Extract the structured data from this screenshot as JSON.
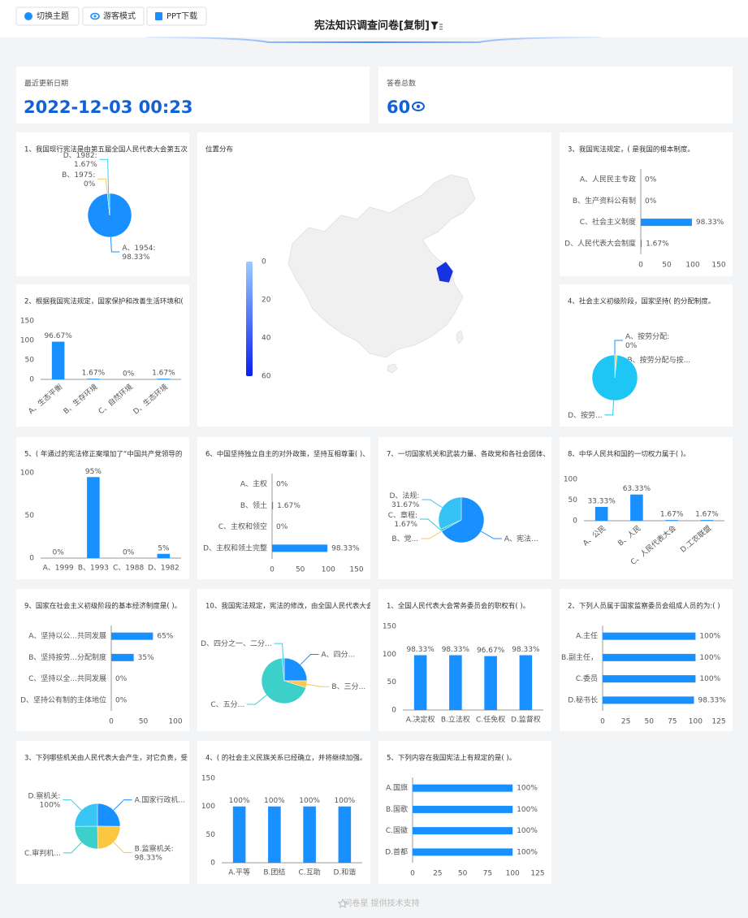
{
  "header": {
    "buttons": [
      "切换主题",
      "游客模式",
      "PPT下载"
    ],
    "title": "宪法知识调查问卷[复制]"
  },
  "stats": [
    {
      "label": "最近更新日期",
      "value": "2022-12-03 00:23"
    },
    {
      "label": "答卷总数",
      "value": 60
    }
  ],
  "chart_data": [
    {
      "type": "pie",
      "title": "1、我国现行宪法是由第五届全国人民代表大会第五次",
      "categories": [
        "A、1954:",
        "B、1975:",
        "D、1982:"
      ],
      "values": [
        98.33,
        0,
        1.67
      ],
      "value_labels": [
        "98.33%",
        "0%",
        "1.67%"
      ],
      "colors": [
        "#1890ff",
        "#fac858",
        "#36cbf5"
      ]
    },
    {
      "type": "map",
      "title": "位置分布",
      "clim": [
        0,
        60
      ],
      "cticks": [
        0,
        20,
        40,
        60
      ],
      "colorbar": [
        "#9ccbff",
        "#0a1ff0"
      ]
    },
    {
      "type": "hbar",
      "title": "3、我国宪法规定，( 是我国的根本制度。",
      "categories": [
        "A、人民民主专政",
        "B、生产资料公有制",
        "C、社会主义制度",
        "D、人民代表大会制度"
      ],
      "values": [
        0,
        0,
        98.33,
        1.67
      ],
      "value_labels": [
        "0%",
        "0%",
        "98.33%",
        "1.67%"
      ],
      "xlim": [
        0,
        150
      ],
      "xticks": [
        0,
        50,
        100,
        150
      ],
      "color": "#1890ff"
    },
    {
      "type": "bar",
      "title": "2、根据我国宪法规定，国家保护和改善生活环境和(",
      "categories": [
        "A、生态平衡",
        "B、生存环境",
        "C、自然环境",
        "D、生态环境"
      ],
      "values": [
        96.67,
        1.67,
        0,
        1.67
      ],
      "value_labels": [
        "96.67%",
        "1.67%",
        "0%",
        "1.67%"
      ],
      "ylim": [
        0,
        150
      ],
      "yticks": [
        0,
        50,
        100,
        150
      ],
      "color": "#1890ff"
    },
    {
      "type": "pie",
      "title": "4、社会主义初级阶段，国家坚持( 的分配制度。",
      "categories": [
        "A、按劳分配:",
        "B、按劳分配与按...",
        "D、按劳..."
      ],
      "values": [
        0,
        1.67,
        98.33
      ],
      "value_labels": [
        "0%",
        null,
        null
      ],
      "colors": [
        "#1890ff",
        "#fac858",
        "#1ec6f5"
      ]
    },
    {
      "type": "bar",
      "title": "5、( 年通过的宪法修正案增加了“中国共产党领导的",
      "categories": [
        "A、1999",
        "B、1993",
        "C、1988",
        "D、1982"
      ],
      "values": [
        0,
        95,
        0,
        5
      ],
      "value_labels": [
        "0%",
        "95%",
        "0%",
        "5%"
      ],
      "ylim": [
        0,
        100
      ],
      "yticks": [
        0,
        50,
        100
      ],
      "color": "#1890ff"
    },
    {
      "type": "hbar",
      "title": "6、中国坚持独立自主的对外政策，坚持互相尊重( )、",
      "categories": [
        "A、主权",
        "B、领土",
        "C、主权和领空",
        "D、主权和领土完整"
      ],
      "values": [
        0,
        1.67,
        0,
        98.33
      ],
      "value_labels": [
        "0%",
        "1.67%",
        "0%",
        "98.33%"
      ],
      "xlim": [
        0,
        150
      ],
      "xticks": [
        0,
        50,
        100,
        150
      ],
      "color": "#1890ff"
    },
    {
      "type": "pie",
      "title": "7、一切国家机关和武装力量、各政党和各社会团体、",
      "categories": [
        "A、宪法...",
        "B、党...",
        "C、章程:",
        "D、法规:"
      ],
      "values": [
        66.67,
        0,
        1.67,
        31.67
      ],
      "value_labels": [
        null,
        null,
        "1.67%",
        "31.67%"
      ],
      "colors": [
        "#1890ff",
        "#fac858",
        "#36cbcb",
        "#35c3f5"
      ]
    },
    {
      "type": "bar",
      "title": "8、中华人民共和国的一切权力属于( )。",
      "categories": [
        "A、公民",
        "B、人民",
        "C、人民代表大会",
        "D.工农联盟"
      ],
      "values": [
        33.33,
        63.33,
        1.67,
        1.67
      ],
      "value_labels": [
        "33.33%",
        "63.33%",
        "1.67%",
        "1.67%"
      ],
      "ylim": [
        0,
        100
      ],
      "yticks": [
        0,
        50,
        100
      ],
      "color": "#1890ff"
    },
    {
      "type": "hbar",
      "title": "9、国家在社会主义初级阶段的基本经济制度是( )。",
      "categories": [
        "A、坚持以公...共同发展",
        "B、坚持按劳...分配制度",
        "C、坚持以全...共同发展",
        "D、坚持公有制的主体地位"
      ],
      "values": [
        65,
        35,
        0,
        0
      ],
      "value_labels": [
        "65%",
        "35%",
        "0%",
        "0%"
      ],
      "xlim": [
        0,
        100
      ],
      "xticks": [
        0,
        50,
        100
      ],
      "color": "#1890ff"
    },
    {
      "type": "pie",
      "title": "10、我国宪法规定，宪法的修改，由全国人民代表大会",
      "categories": [
        "A、四分...",
        "B、三分...",
        "C、五分...",
        "D、四分之一、二分..."
      ],
      "values": [
        25,
        5,
        68.33,
        1.67
      ],
      "value_labels": [
        null,
        null,
        null,
        null
      ],
      "colors": [
        "#1890ff",
        "#fac858",
        "#3dcfc9",
        "#36cbf5"
      ]
    },
    {
      "type": "bar",
      "title": "1、全国人民代表大会常务委员会的职权有( )。",
      "categories": [
        "A.决定权",
        "B.立法权",
        "C.任免权",
        "D.监督权"
      ],
      "values": [
        98.33,
        98.33,
        96.67,
        98.33
      ],
      "value_labels": [
        "98.33%",
        "98.33%",
        "96.67%",
        "98.33%"
      ],
      "ylim": [
        0,
        150
      ],
      "yticks": [
        0,
        50,
        100,
        150
      ],
      "color": "#1890ff"
    },
    {
      "type": "hbar",
      "title": "2、下列人员属于国家监察委员会组成人员的为:( )",
      "categories": [
        "A.主任",
        "B.副主任，",
        "C.委员",
        "D.秘书长"
      ],
      "values": [
        100,
        100,
        100,
        98.33
      ],
      "value_labels": [
        "100%",
        "100%",
        "100%",
        "98.33%"
      ],
      "xlim": [
        0,
        125
      ],
      "xticks": [
        0,
        25,
        50,
        75,
        100,
        125
      ],
      "color": "#1890ff"
    },
    {
      "type": "pie",
      "title": "3、下列哪些机关由人民代表大会产生，对它负责，受",
      "categories": [
        "A.国家行政机...",
        "B.监察机关:",
        "C.审判机...",
        "D.察机关:"
      ],
      "values": [
        100,
        98.33,
        100,
        100
      ],
      "value_labels": [
        null,
        "98.33%",
        null,
        "100%"
      ],
      "colors": [
        "#1890ff",
        "#fbc740",
        "#3dcfc9",
        "#38c6f4"
      ]
    },
    {
      "type": "bar",
      "title": "4、( 的社会主义民族关系已经确立，并将继续加强。",
      "categories": [
        "A.平等",
        "B.团结",
        "C.互助",
        "D.和谐"
      ],
      "values": [
        100,
        100,
        100,
        100
      ],
      "value_labels": [
        "100%",
        "100%",
        "100%",
        "100%"
      ],
      "ylim": [
        0,
        150
      ],
      "yticks": [
        0,
        50,
        100,
        150
      ],
      "color": "#1890ff"
    },
    {
      "type": "hbar",
      "title": "5、下列内容在我国宪法上有规定的是( )。",
      "categories": [
        "A.国旗",
        "B.国歌",
        "C.国徽",
        "D.首都"
      ],
      "values": [
        100,
        100,
        100,
        100
      ],
      "value_labels": [
        "100%",
        "100%",
        "100%",
        "100%"
      ],
      "xlim": [
        0,
        125
      ],
      "xticks": [
        0,
        25,
        50,
        75,
        100,
        125
      ],
      "color": "#1890ff"
    }
  ],
  "footer": "问卷星 提供技术支持"
}
